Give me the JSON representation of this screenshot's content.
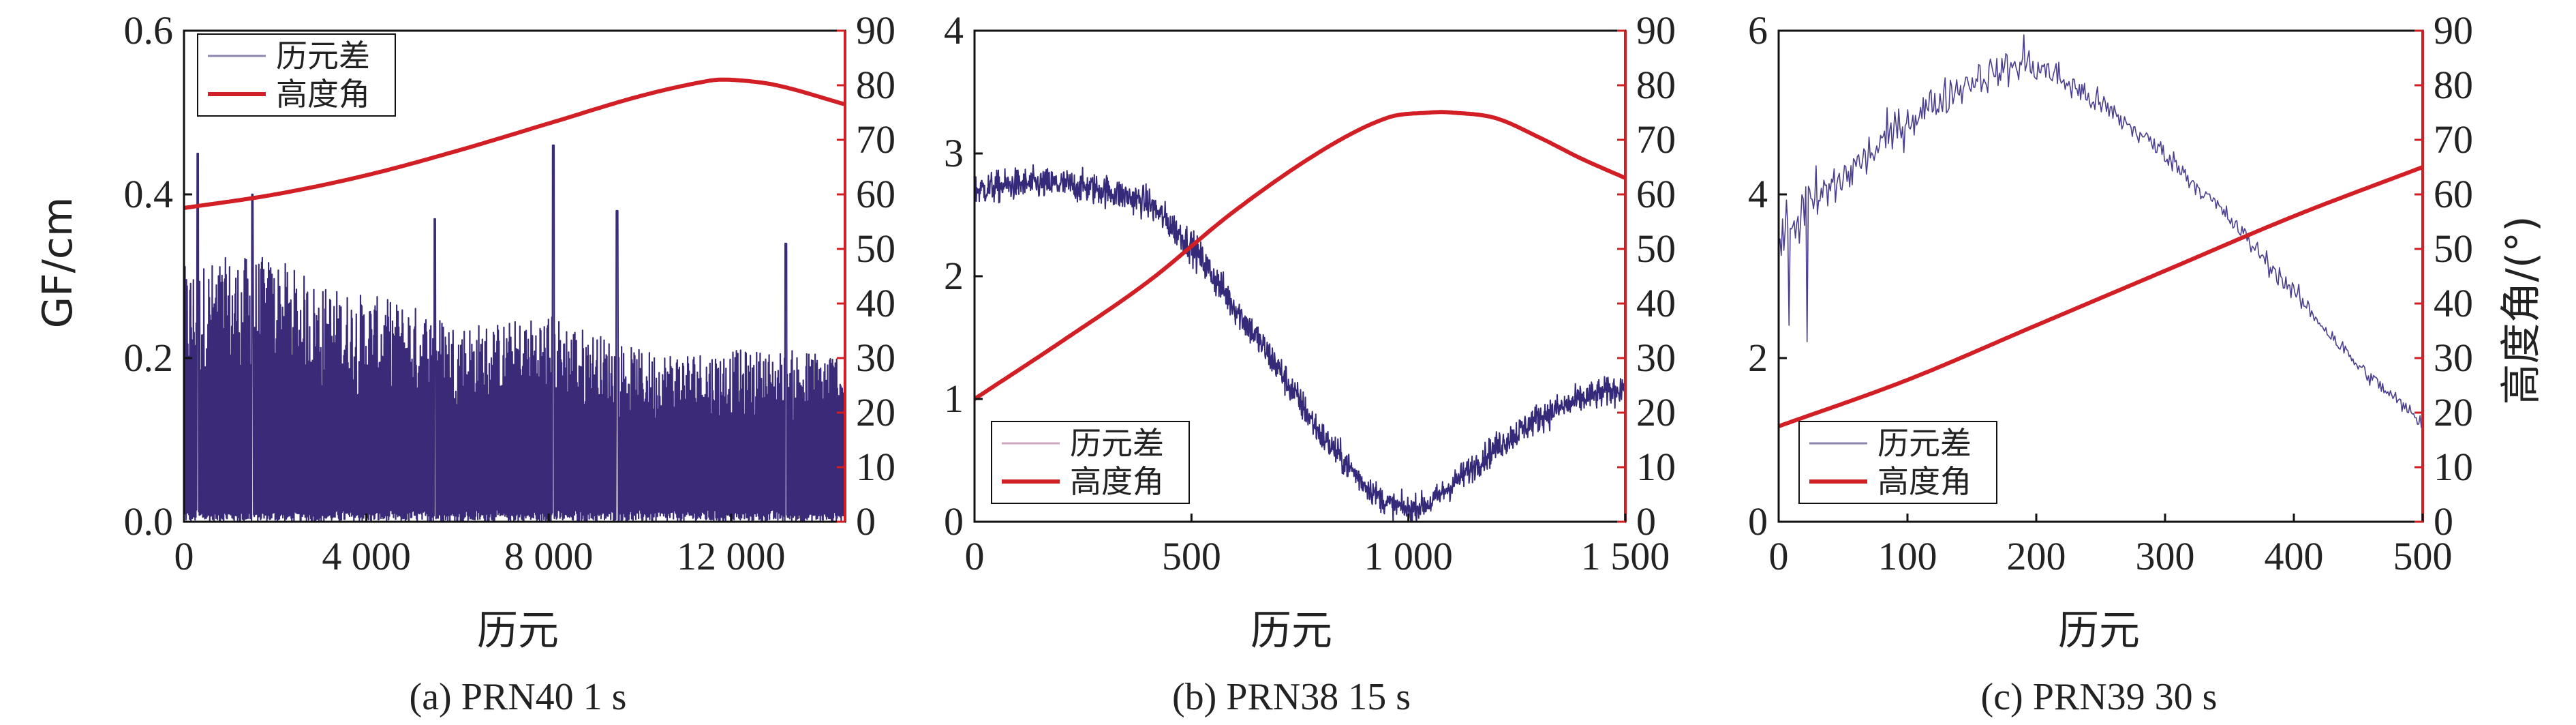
{
  "chart_data": [
    {
      "type": "line",
      "caption": "(a) PRN40 1 s",
      "xlabel": "历元",
      "ylabel": "GF/cm",
      "y2label": "",
      "xlim": [
        0,
        14500
      ],
      "xticks": [
        0,
        4000,
        8000,
        12000
      ],
      "xtick_labels": [
        "0",
        "4 000",
        "8 000",
        "12 000"
      ],
      "ylim": [
        0,
        0.6
      ],
      "yticks": [
        0,
        0.2,
        0.4,
        0.6
      ],
      "ytick_labels": [
        "0.0",
        "0.2",
        "0.4",
        "0.6"
      ],
      "y2lim": [
        0,
        90
      ],
      "y2ticks": [
        0,
        10,
        20,
        30,
        40,
        50,
        60,
        70,
        80,
        90
      ],
      "legend_position": "top-left",
      "legend": [
        "历元差",
        "高度角"
      ],
      "series": [
        {
          "name": "历元差",
          "axis": "left",
          "style": "dense-noise",
          "x": [
            0,
            1000,
            2000,
            3000,
            4000,
            5000,
            6000,
            7000,
            8000,
            9000,
            10000,
            11000,
            12000,
            13000,
            14500
          ],
          "center": [
            0.12,
            0.12,
            0.12,
            0.11,
            0.11,
            0.11,
            0.1,
            0.1,
            0.1,
            0.1,
            0.09,
            0.09,
            0.09,
            0.09,
            0.09
          ],
          "spread": [
            0.16,
            0.17,
            0.17,
            0.15,
            0.14,
            0.13,
            0.12,
            0.12,
            0.13,
            0.11,
            0.1,
            0.1,
            0.1,
            0.1,
            0.1
          ],
          "peaks": [
            [
              300,
              0.45
            ],
            [
              1500,
              0.4
            ],
            [
              5500,
              0.37
            ],
            [
              8100,
              0.46
            ],
            [
              9500,
              0.38
            ],
            [
              13200,
              0.34
            ]
          ]
        },
        {
          "name": "高度角",
          "axis": "right",
          "x": [
            0,
            2000,
            4000,
            6000,
            8000,
            10000,
            11500,
            12000,
            13000,
            14500
          ],
          "values": [
            57.5,
            60,
            63.5,
            68,
            73,
            78,
            80.8,
            81,
            80,
            76.5
          ]
        }
      ]
    },
    {
      "type": "line",
      "caption": "(b) PRN38 15 s",
      "xlabel": "历元",
      "ylabel": "",
      "y2label": "",
      "xlim": [
        0,
        1500
      ],
      "xticks": [
        0,
        500,
        1000,
        1500
      ],
      "xtick_labels": [
        "0",
        "500",
        "1 000",
        "1 500"
      ],
      "ylim": [
        0,
        4
      ],
      "yticks": [
        0,
        1,
        2,
        3,
        4
      ],
      "ytick_labels": [
        "0",
        "1",
        "2",
        "3",
        "4"
      ],
      "y2lim": [
        0,
        90
      ],
      "y2ticks": [
        0,
        10,
        20,
        30,
        40,
        50,
        60,
        70,
        80,
        90
      ],
      "legend_position": "bottom-left",
      "legend": [
        "历元差",
        "高度角"
      ],
      "series": [
        {
          "name": "历元差",
          "axis": "left",
          "style": "noise",
          "x": [
            0,
            100,
            200,
            300,
            400,
            500,
            600,
            700,
            800,
            900,
            950,
            1000,
            1050,
            1100,
            1200,
            1300,
            1400,
            1500
          ],
          "center": [
            2.7,
            2.75,
            2.75,
            2.7,
            2.6,
            2.25,
            1.75,
            1.25,
            0.7,
            0.3,
            0.15,
            0.1,
            0.15,
            0.3,
            0.6,
            0.85,
            1.0,
            1.1
          ],
          "spread": [
            0.15,
            0.15,
            0.15,
            0.15,
            0.15,
            0.16,
            0.16,
            0.16,
            0.15,
            0.13,
            0.12,
            0.12,
            0.12,
            0.13,
            0.14,
            0.14,
            0.14,
            0.14
          ]
        },
        {
          "name": "高度角",
          "axis": "right",
          "x": [
            0,
            200,
            400,
            600,
            800,
            950,
            1050,
            1100,
            1200,
            1300,
            1400,
            1500
          ],
          "values": [
            22.5,
            33,
            44,
            57,
            68,
            74,
            75,
            75,
            74,
            70.5,
            66.5,
            63
          ]
        }
      ]
    },
    {
      "type": "line",
      "caption": "(c) PRN39 30 s",
      "xlabel": "历元",
      "ylabel": "",
      "y2label": "高度角/(°)",
      "xlim": [
        0,
        500
      ],
      "xticks": [
        0,
        100,
        200,
        300,
        400,
        500
      ],
      "xtick_labels": [
        "0",
        "100",
        "200",
        "300",
        "400",
        "500"
      ],
      "ylim": [
        0,
        6
      ],
      "yticks": [
        0,
        2,
        4,
        6
      ],
      "ytick_labels": [
        "0",
        "2",
        "4",
        "6"
      ],
      "y2lim": [
        0,
        90
      ],
      "y2ticks": [
        0,
        10,
        20,
        30,
        40,
        50,
        60,
        70,
        80,
        90
      ],
      "legend_position": "bottom-left",
      "legend": [
        "历元差",
        "高度角"
      ],
      "series": [
        {
          "name": "历元差",
          "axis": "left",
          "style": "noise",
          "x": [
            0,
            20,
            50,
            100,
            150,
            190,
            210,
            250,
            300,
            350,
            400,
            450,
            500
          ],
          "center": [
            3.5,
            3.8,
            4.2,
            4.9,
            5.4,
            5.6,
            5.5,
            5.1,
            4.5,
            3.7,
            2.8,
            1.9,
            1.2
          ],
          "spread": [
            0.4,
            0.5,
            0.35,
            0.3,
            0.25,
            0.25,
            0.25,
            0.2,
            0.15,
            0.15,
            0.15,
            0.12,
            0.12
          ],
          "peaks": [
            [
              8,
              2.4
            ],
            [
              22,
              2.2
            ],
            [
              190,
              5.95
            ]
          ]
        },
        {
          "name": "高度角",
          "axis": "right",
          "x": [
            0,
            100,
            200,
            300,
            400,
            500
          ],
          "values": [
            17.5,
            26,
            36,
            46,
            56,
            65
          ]
        }
      ]
    }
  ]
}
